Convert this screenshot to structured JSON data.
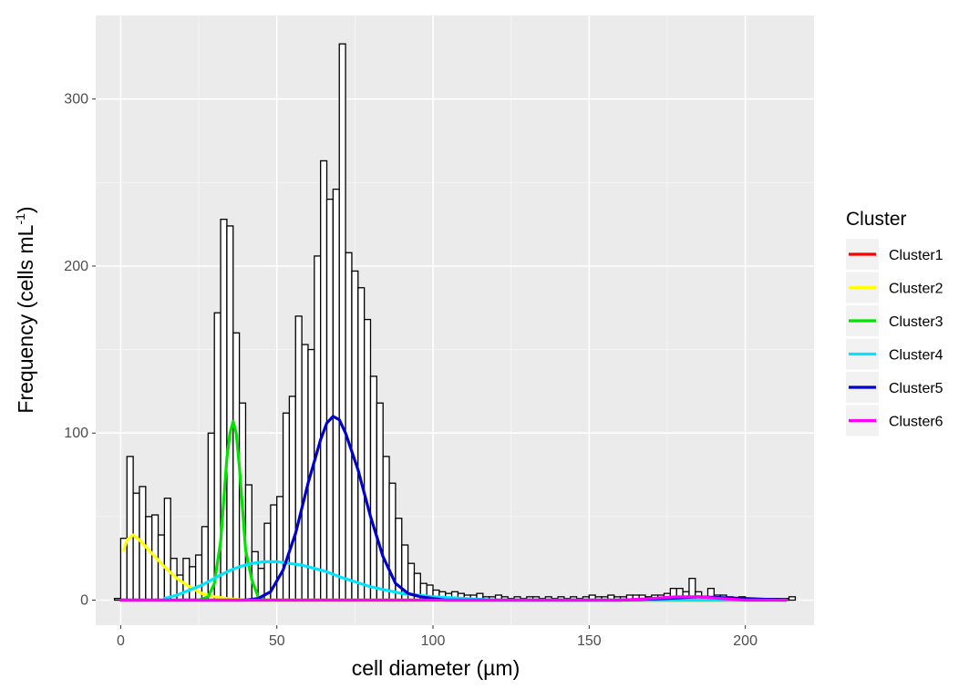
{
  "chart_data": {
    "type": "bar",
    "xlabel": "cell diameter (µm)",
    "ylabel": "Frequency (cells mL",
    "ylabel_sup": "-1",
    "ylabel_close": ")",
    "xlim": [
      -8,
      222
    ],
    "ylim": [
      -15,
      350
    ],
    "x_ticks": [
      0,
      50,
      100,
      150,
      200
    ],
    "x_tick_labels": [
      "0",
      "50",
      "100",
      "150",
      "200"
    ],
    "y_ticks": [
      0,
      100,
      200,
      300
    ],
    "y_tick_labels": [
      "0",
      "100",
      "200",
      "300"
    ],
    "grid": true,
    "histogram": {
      "bin_width": 2,
      "bins_start": [
        -2,
        0,
        2,
        4,
        6,
        8,
        10,
        12,
        14,
        16,
        18,
        20,
        22,
        24,
        26,
        28,
        30,
        32,
        34,
        36,
        38,
        40,
        42,
        44,
        46,
        48,
        50,
        52,
        54,
        56,
        58,
        60,
        62,
        64,
        66,
        68,
        70,
        72,
        74,
        76,
        78,
        80,
        82,
        84,
        86,
        88,
        90,
        92,
        94,
        96,
        98,
        100,
        102,
        104,
        106,
        108,
        110,
        112,
        114,
        116,
        118,
        120,
        122,
        124,
        126,
        128,
        130,
        132,
        134,
        136,
        138,
        140,
        142,
        144,
        146,
        148,
        150,
        152,
        154,
        156,
        158,
        160,
        162,
        164,
        166,
        168,
        170,
        172,
        174,
        176,
        178,
        180,
        182,
        184,
        186,
        188,
        190,
        192,
        194,
        196,
        198,
        200,
        202,
        204,
        206,
        208,
        210,
        212,
        214
      ],
      "counts": [
        1,
        37,
        86,
        64,
        68,
        50,
        51,
        39,
        61,
        25,
        15,
        25,
        20,
        27,
        44,
        100,
        172,
        228,
        224,
        160,
        118,
        69,
        29,
        19,
        46,
        57,
        62,
        112,
        122,
        170,
        153,
        150,
        206,
        263,
        240,
        246,
        333,
        208,
        197,
        187,
        168,
        134,
        118,
        86,
        70,
        49,
        33,
        22,
        16,
        10,
        9,
        6,
        5,
        4,
        5,
        4,
        3,
        3,
        4,
        2,
        2,
        3,
        2,
        1,
        2,
        1,
        2,
        2,
        1,
        2,
        1,
        2,
        1,
        2,
        1,
        2,
        3,
        2,
        2,
        3,
        2,
        2,
        3,
        3,
        3,
        2,
        3,
        3,
        4,
        7,
        7,
        5,
        13,
        5,
        2,
        7,
        3,
        3,
        2,
        1,
        2,
        1,
        1,
        1,
        1,
        1,
        1,
        1,
        2,
        2
      ]
    },
    "legend": {
      "title": "Cluster",
      "position": "right",
      "entries": [
        {
          "name": "Cluster1",
          "color": "#ff0000"
        },
        {
          "name": "Cluster2",
          "color": "#ffff00"
        },
        {
          "name": "Cluster3",
          "color": "#00e400"
        },
        {
          "name": "Cluster4",
          "color": "#00e5ff"
        },
        {
          "name": "Cluster5",
          "color": "#0000cc"
        },
        {
          "name": "Cluster6",
          "color": "#ff00ff"
        }
      ]
    },
    "series": [
      {
        "name": "Cluster1",
        "color": "#ff0000",
        "x": [
          0,
          50,
          100,
          150,
          200,
          213
        ],
        "y": [
          0,
          0,
          0,
          0,
          0,
          0
        ]
      },
      {
        "name": "Cluster2",
        "color": "#ffff00",
        "x": [
          1,
          2,
          4,
          6,
          10,
          14,
          18,
          22,
          26,
          30,
          34,
          40,
          50,
          100,
          150,
          200,
          213
        ],
        "y": [
          30,
          36,
          39,
          36,
          28,
          20,
          13,
          8,
          4,
          2,
          1,
          0,
          0,
          0,
          0,
          0,
          0
        ]
      },
      {
        "name": "Cluster3",
        "color": "#00e400",
        "x": [
          25,
          28,
          30,
          32,
          33,
          34,
          35,
          36,
          37,
          38,
          39,
          40,
          42,
          44,
          46,
          50,
          100,
          150,
          213
        ],
        "y": [
          0,
          2,
          10,
          35,
          60,
          85,
          100,
          107,
          100,
          80,
          55,
          30,
          12,
          2,
          0,
          0,
          0,
          0,
          0
        ]
      },
      {
        "name": "Cluster4",
        "color": "#00e5ff",
        "x": [
          14,
          18,
          22,
          26,
          30,
          34,
          38,
          42,
          46,
          50,
          54,
          58,
          62,
          66,
          70,
          75,
          80,
          85,
          90,
          95,
          100,
          110,
          120,
          140,
          213
        ],
        "y": [
          1,
          3,
          6,
          9,
          13,
          17,
          20,
          22,
          23,
          23,
          22,
          21,
          19,
          17,
          14,
          11,
          8,
          6,
          4,
          3,
          2,
          1,
          0,
          0,
          0
        ]
      },
      {
        "name": "Cluster5",
        "color": "#0000cc",
        "x": [
          0,
          40,
          44,
          48,
          52,
          56,
          60,
          64,
          66,
          68,
          70,
          72,
          76,
          80,
          84,
          88,
          92,
          96,
          100,
          104,
          110,
          120,
          140,
          160,
          175,
          185,
          200,
          213
        ],
        "y": [
          0,
          0,
          1,
          5,
          18,
          40,
          70,
          96,
          106,
          110,
          108,
          100,
          78,
          50,
          26,
          10,
          4,
          2,
          1,
          0,
          0,
          0,
          0,
          0,
          1,
          2,
          1,
          0
        ]
      },
      {
        "name": "Cluster6",
        "color": "#ff00ff",
        "x": [
          0,
          50,
          100,
          140,
          160,
          170,
          178,
          185,
          192,
          200,
          213
        ],
        "y": [
          0,
          0,
          0,
          0,
          0,
          1,
          2,
          2,
          1,
          0,
          0
        ]
      }
    ]
  }
}
